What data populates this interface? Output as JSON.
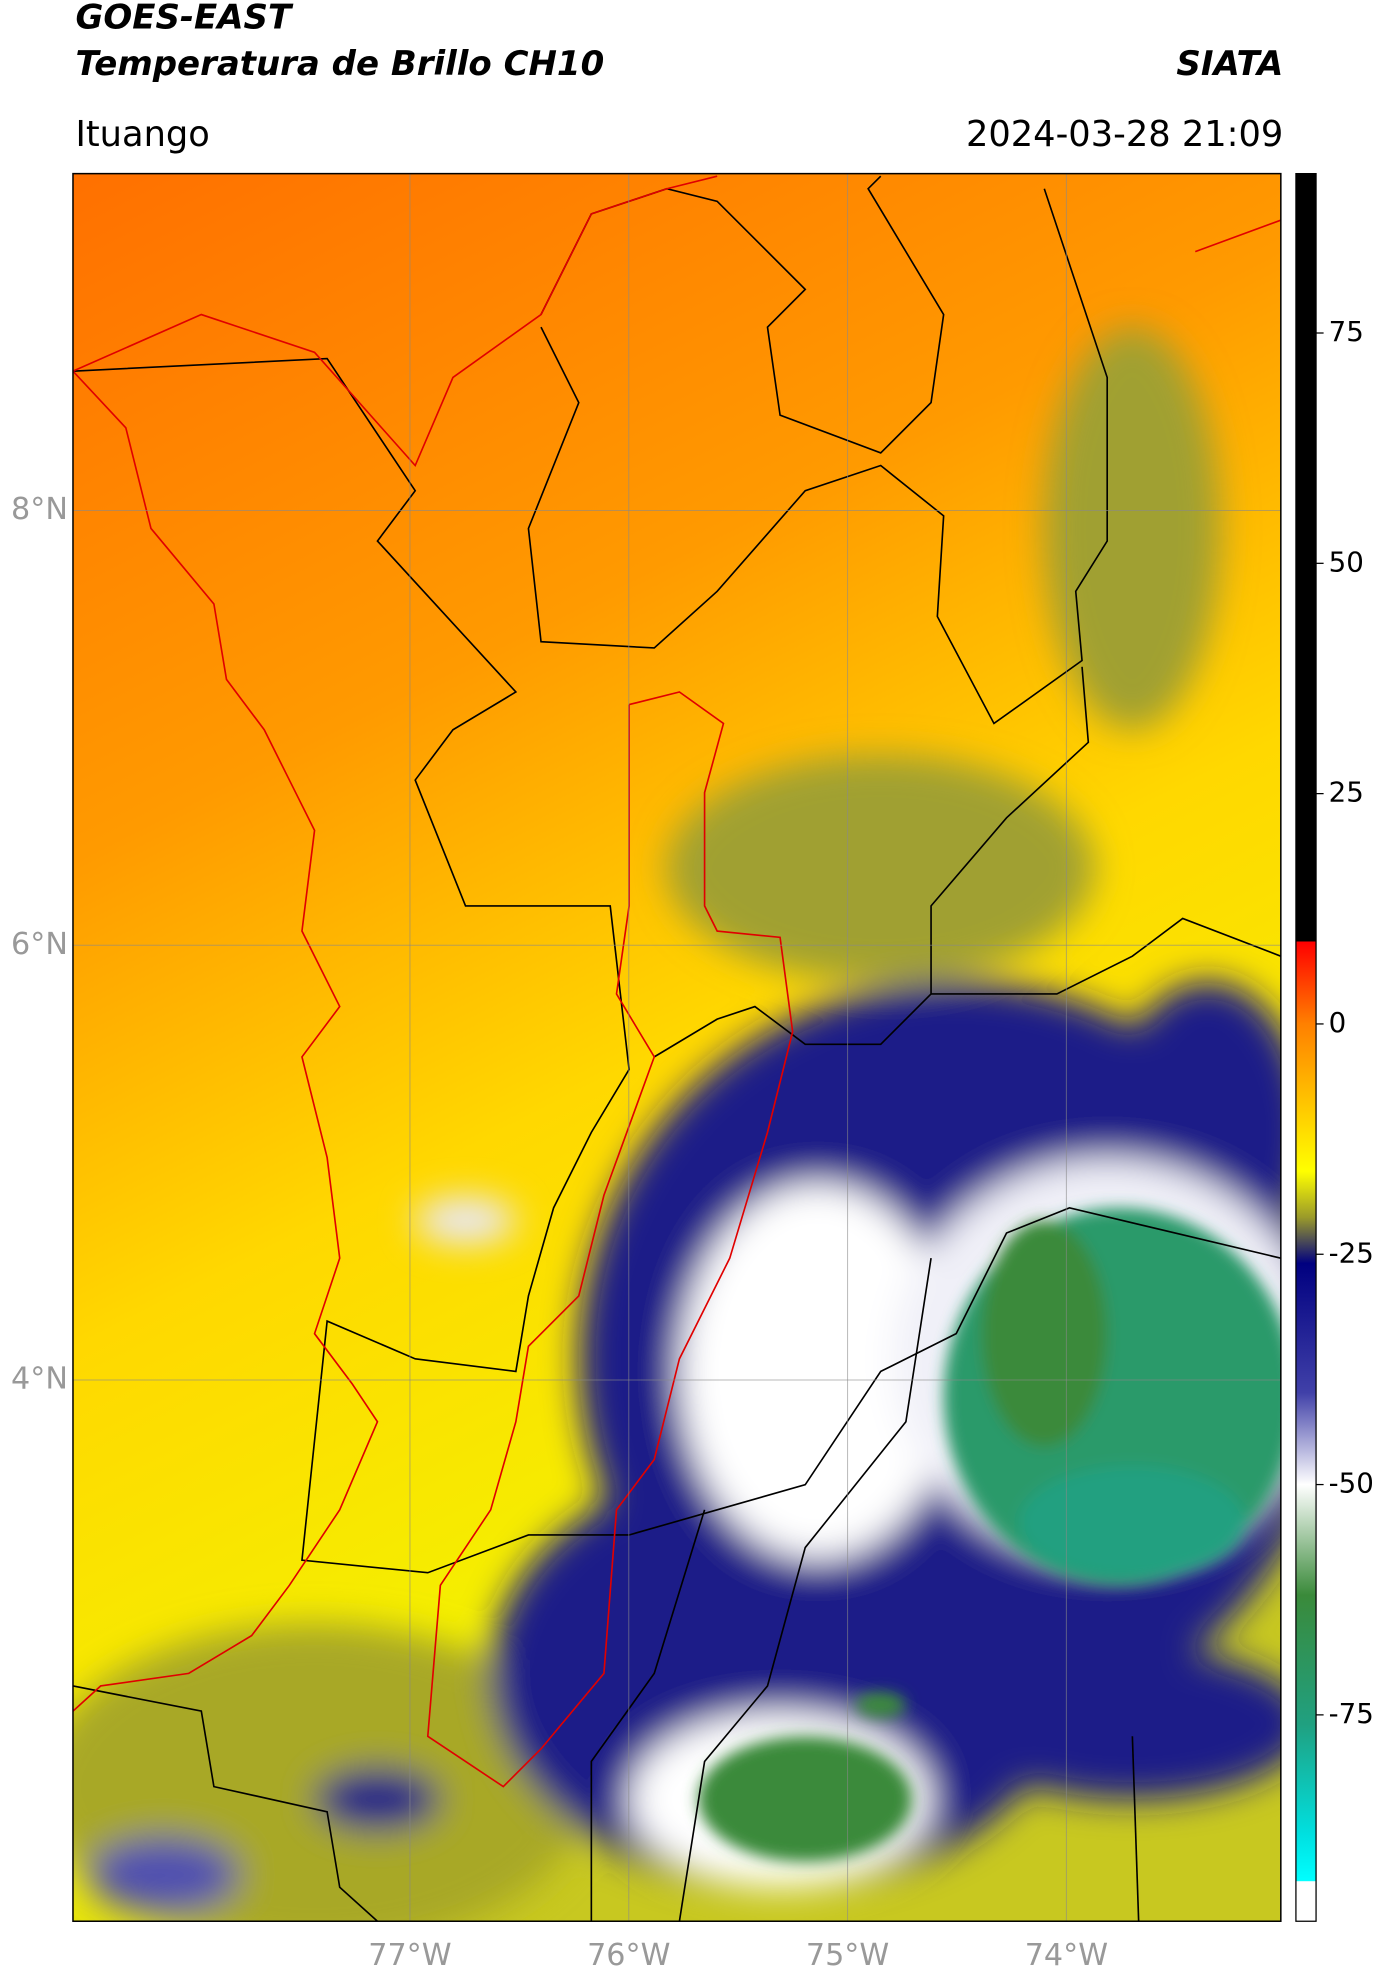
{
  "header": {
    "title": "GOES-EAST",
    "subtitle": "Temperatura de Brillo CH10",
    "source": "SIATA",
    "location": "Ituango",
    "datetime": "2024-03-28 21:09"
  },
  "map": {
    "xlim": [
      -78.54,
      -73.02
    ],
    "ylim": [
      1.51,
      9.55
    ],
    "grid": true,
    "xticks": [
      {
        "value": -77,
        "label": "77°W"
      },
      {
        "value": -76,
        "label": "76°W"
      },
      {
        "value": -75,
        "label": "75°W"
      },
      {
        "value": -74,
        "label": "74°W"
      }
    ],
    "yticks": [
      {
        "value": 8,
        "label": "8°N"
      },
      {
        "value": 6,
        "label": "6°N"
      },
      {
        "value": 4,
        "label": "4°N"
      }
    ]
  },
  "colorbar": {
    "range": [
      -97.4,
      92.3
    ],
    "ticks": [
      75,
      50,
      25,
      0,
      -25,
      -50,
      -75
    ],
    "stops": [
      {
        "value": 92.3,
        "color": "#000000"
      },
      {
        "value": 9,
        "color": "#000000"
      },
      {
        "value": 8.9,
        "color": "#ff0000"
      },
      {
        "value": 0,
        "color": "#ff8000"
      },
      {
        "value": -10,
        "color": "#ffd000"
      },
      {
        "value": -16,
        "color": "#ffff00"
      },
      {
        "value": -21,
        "color": "#9a9a2a"
      },
      {
        "value": -26,
        "color": "#000080"
      },
      {
        "value": -40,
        "color": "#4040a8"
      },
      {
        "value": -50,
        "color": "#ffffff"
      },
      {
        "value": -62,
        "color": "#3a8a3a"
      },
      {
        "value": -76,
        "color": "#20a080"
      },
      {
        "value": -88,
        "color": "#00e0e0"
      },
      {
        "value": -93,
        "color": "#00ffff"
      },
      {
        "value": -93.1,
        "color": "#ffffff"
      },
      {
        "value": -97.4,
        "color": "#ffffff"
      }
    ]
  }
}
